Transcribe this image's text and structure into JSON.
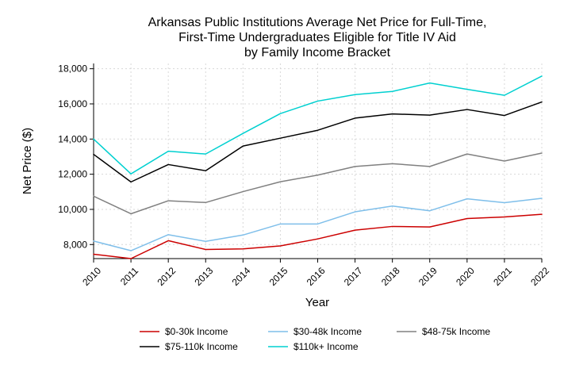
{
  "chart_data": {
    "type": "line",
    "title": [
      "Arkansas Public Institutions Average Net Price for Full-Time,",
      "First-Time Undergraduates Eligible for Title IV Aid",
      "by Family Income Bracket"
    ],
    "xlabel": "Year",
    "ylabel": "Net Price ($)",
    "x": [
      "2010",
      "2011",
      "2012",
      "2013",
      "2014",
      "2015",
      "2016",
      "2017",
      "2018",
      "2019",
      "2020",
      "2021",
      "2022"
    ],
    "ylim": [
      7200,
      18300
    ],
    "yticks": [
      8000,
      10000,
      12000,
      14000,
      16000,
      18000
    ],
    "ytick_labels": [
      "8,000",
      "10,000",
      "12,000",
      "14,000",
      "16,000",
      "18,000"
    ],
    "grid": true,
    "legend_position": "bottom",
    "series": [
      {
        "name": "$0-30k Income",
        "color": "#cc0000",
        "values": [
          7450,
          7200,
          8220,
          7720,
          7750,
          7920,
          8320,
          8820,
          9030,
          9000,
          9480,
          9570,
          9720
        ]
      },
      {
        "name": "$30-48k Income",
        "color": "#7fbfea",
        "values": [
          8200,
          7650,
          8560,
          8180,
          8540,
          9170,
          9170,
          9860,
          10190,
          9920,
          10600,
          10380,
          10630
        ]
      },
      {
        "name": "$48-75k Income",
        "color": "#808080",
        "values": [
          10750,
          9750,
          10490,
          10390,
          11010,
          11570,
          11950,
          12440,
          12600,
          12440,
          13150,
          12750,
          13200
        ]
      },
      {
        "name": "$75-110k Income",
        "color": "#000000",
        "values": [
          13130,
          11560,
          12550,
          12200,
          13600,
          14050,
          14500,
          15190,
          15430,
          15360,
          15680,
          15340,
          16110
        ]
      },
      {
        "name": "$110k+ Income",
        "color": "#00d0d0",
        "values": [
          14000,
          12020,
          13310,
          13150,
          14320,
          15450,
          16160,
          16530,
          16710,
          17190,
          16830,
          16490,
          17580
        ]
      }
    ]
  }
}
